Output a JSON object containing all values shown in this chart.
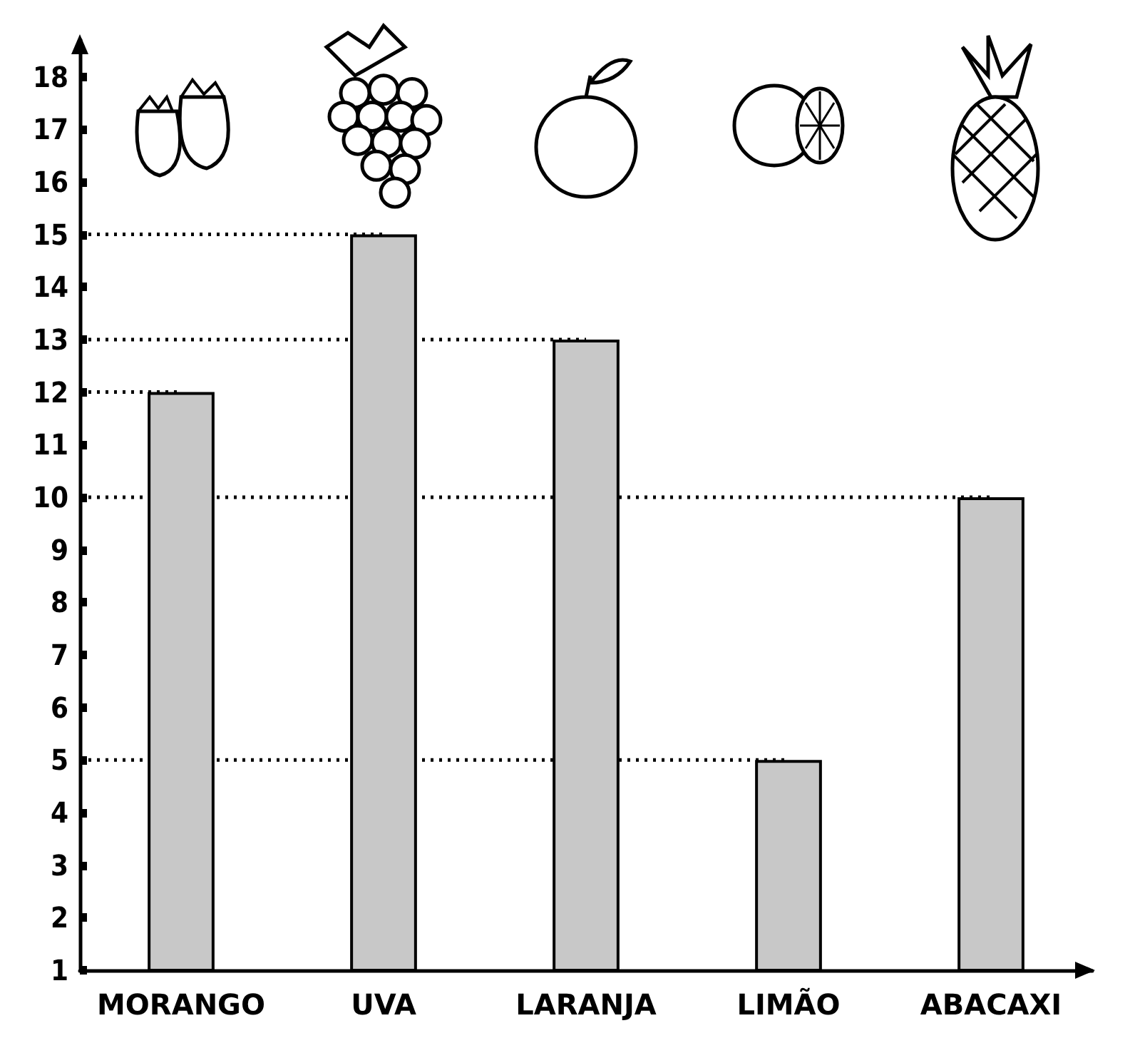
{
  "chart_data": {
    "type": "bar",
    "categories": [
      "MORANGO",
      "UVA",
      "LARANJA",
      "LIMÃO",
      "ABACAXI"
    ],
    "values": [
      12,
      15,
      13,
      5,
      10
    ],
    "color": "#c8c8c8",
    "ylim": [
      1,
      18.7
    ],
    "yticks": [
      1,
      2,
      3,
      4,
      5,
      6,
      7,
      8,
      9,
      10,
      11,
      12,
      13,
      14,
      15,
      16,
      17,
      18
    ],
    "ref_lines": [
      {
        "axis": "y",
        "value": 12,
        "line_style": "dotted",
        "color": "#000000"
      },
      {
        "axis": "y",
        "value": 15,
        "line_style": "dotted",
        "color": "#000000"
      },
      {
        "axis": "y",
        "value": 13,
        "line_style": "dotted",
        "color": "#000000"
      },
      {
        "axis": "y",
        "value": 5,
        "line_style": "dotted",
        "color": "#000000"
      },
      {
        "axis": "y",
        "value": 10,
        "line_style": "dotted",
        "color": "#000000"
      }
    ]
  }
}
